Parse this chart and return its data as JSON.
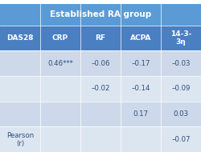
{
  "title": "Established RA group",
  "col_headers": [
    "DAS28",
    "CRP",
    "RF",
    "ACPA",
    "14-3-\n3η"
  ],
  "rows": [
    [
      "",
      "0.46***",
      "–0.06",
      "–0.17",
      "–0.03"
    ],
    [
      "",
      "",
      "–0.02",
      "–0.14",
      "–0.09"
    ],
    [
      "",
      "",
      "",
      "0.17",
      "0.03"
    ],
    [
      "Pearson\n(r)",
      "",
      "",
      "",
      "–0.07"
    ]
  ],
  "title_bg": "#5b9bd5",
  "header_bg": "#4a7fc1",
  "row_bg_odd": "#cdd9ea",
  "row_bg_even": "#dce6f1",
  "title_color": "#ffffff",
  "header_color": "#ffffff",
  "cell_color": "#2e4d7b",
  "n_cols": 5,
  "n_rows": 4
}
